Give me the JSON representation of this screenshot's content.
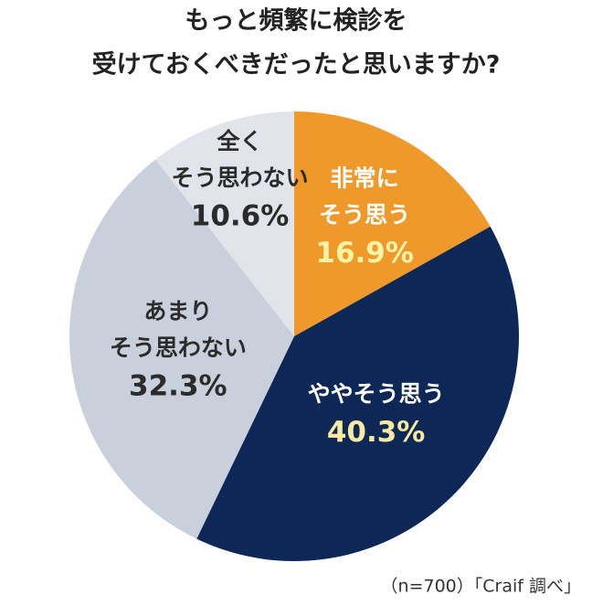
{
  "chart_data": {
    "type": "pie",
    "title": [
      "もっと頻繁に検診を",
      "受けておくべきだったと思いますか?"
    ],
    "categories": [
      [
        "非常に",
        "そう思う"
      ],
      [
        "ややそう思う"
      ],
      [
        "あまり",
        "そう思わない"
      ],
      [
        "全く",
        "そう思わない"
      ]
    ],
    "values": [
      16.9,
      40.3,
      32.3,
      10.6
    ],
    "value_labels": [
      "16.9%",
      "40.3%",
      "32.3%",
      "10.6%"
    ],
    "colors": [
      "#f0992b",
      "#0d2856",
      "#c9cfdb",
      "#e1e4ea"
    ],
    "source": "（n=700）「Craif 調べ」"
  }
}
